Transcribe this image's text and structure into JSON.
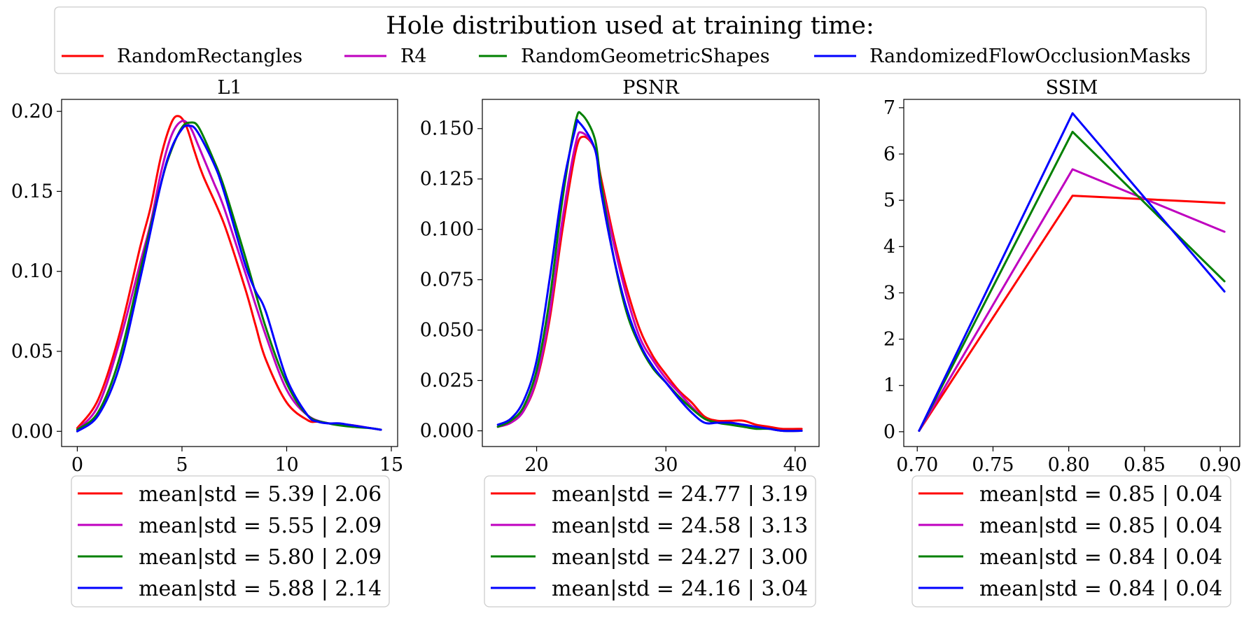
{
  "figure": {
    "title": "Hole distribution used at training time:",
    "series_names": [
      "RandomRectangles",
      "R4",
      "RandomGeometricShapes",
      "RandomizedFlowOcclusionMasks"
    ],
    "colors": [
      "#ff0000",
      "#bf00bf",
      "#008000",
      "#0000ff"
    ]
  },
  "chart_data": [
    {
      "type": "line",
      "title": "L1",
      "xlabel": "",
      "ylabel": "",
      "xlim": [
        -0.75,
        15.3
      ],
      "ylim": [
        -0.0095,
        0.2075
      ],
      "xticks": [
        0,
        5,
        10,
        15
      ],
      "xtick_labels": [
        "0",
        "5",
        "10",
        "15"
      ],
      "yticks": [
        0.0,
        0.05,
        0.1,
        0.15,
        0.2
      ],
      "ytick_labels": [
        "0.00",
        "0.05",
        "0.10",
        "0.15",
        "0.20"
      ],
      "grid": false,
      "series": [
        {
          "name": "RandomRectangles",
          "x": [
            0,
            1,
            2,
            3,
            3.5,
            4,
            4.5,
            4.85,
            5.2,
            5.6,
            6,
            7,
            8,
            8.5,
            9,
            10,
            11,
            11.5,
            12,
            13,
            14,
            14.5
          ],
          "y": [
            0.002,
            0.02,
            0.06,
            0.115,
            0.14,
            0.172,
            0.193,
            0.197,
            0.191,
            0.175,
            0.16,
            0.13,
            0.09,
            0.067,
            0.045,
            0.018,
            0.007,
            0.006,
            0.005,
            0.004,
            0.002,
            0.001
          ]
        },
        {
          "name": "R4",
          "x": [
            0,
            1,
            2,
            3,
            3.5,
            4,
            4.5,
            5,
            5.4,
            5.8,
            6.5,
            7,
            8,
            9,
            10,
            11,
            12,
            13,
            14,
            14.5
          ],
          "y": [
            0.001,
            0.016,
            0.055,
            0.105,
            0.13,
            0.162,
            0.185,
            0.194,
            0.19,
            0.178,
            0.156,
            0.14,
            0.1,
            0.06,
            0.026,
            0.01,
            0.005,
            0.004,
            0.002,
            0.001
          ]
        },
        {
          "name": "RandomGeometricShapes",
          "x": [
            0,
            1,
            2,
            3,
            4,
            4.5,
            5,
            5.4,
            5.8,
            6.5,
            7,
            8,
            9,
            10,
            11,
            12,
            13,
            14,
            14.5
          ],
          "y": [
            0.001,
            0.012,
            0.045,
            0.1,
            0.155,
            0.176,
            0.19,
            0.193,
            0.19,
            0.17,
            0.153,
            0.11,
            0.065,
            0.03,
            0.01,
            0.005,
            0.003,
            0.002,
            0.001
          ]
        },
        {
          "name": "RandomizedFlowOcclusionMasks",
          "x": [
            0,
            1,
            2,
            3,
            4,
            4.5,
            5,
            5.3,
            5.7,
            6.5,
            7,
            8,
            8.5,
            9,
            10,
            11,
            11.5,
            12,
            12.5,
            13,
            14,
            14.5
          ],
          "y": [
            0.0,
            0.01,
            0.04,
            0.095,
            0.155,
            0.177,
            0.189,
            0.191,
            0.188,
            0.168,
            0.15,
            0.105,
            0.088,
            0.075,
            0.033,
            0.01,
            0.006,
            0.005,
            0.005,
            0.004,
            0.002,
            0.001
          ]
        }
      ],
      "legend_entries": [
        "mean|std = 5.39 | 2.06",
        "mean|std = 5.55 | 2.09",
        "mean|std = 5.80 | 2.09",
        "mean|std = 5.88 | 2.14"
      ],
      "legend_position": "below"
    },
    {
      "type": "line",
      "title": "PSNR",
      "xlabel": "",
      "ylabel": "",
      "xlim": [
        15.8,
        41.85
      ],
      "ylim": [
        -0.0078,
        0.1645
      ],
      "xticks": [
        20,
        30,
        40
      ],
      "xtick_labels": [
        "20",
        "30",
        "40"
      ],
      "yticks": [
        0.0,
        0.025,
        0.05,
        0.075,
        0.1,
        0.125,
        0.15
      ],
      "ytick_labels": [
        "0.000",
        "0.025",
        "0.050",
        "0.075",
        "0.100",
        "0.125",
        "0.150"
      ],
      "grid": false,
      "series": [
        {
          "name": "RandomRectangles",
          "x": [
            17,
            18,
            19,
            20,
            21,
            22,
            23,
            23.6,
            24.5,
            25,
            26,
            27,
            28,
            29,
            30,
            31,
            32,
            33,
            34,
            35,
            36,
            37,
            38,
            39,
            40.5
          ],
          "y": [
            0.002,
            0.004,
            0.01,
            0.025,
            0.055,
            0.1,
            0.138,
            0.146,
            0.14,
            0.125,
            0.095,
            0.07,
            0.05,
            0.037,
            0.028,
            0.02,
            0.014,
            0.007,
            0.005,
            0.005,
            0.005,
            0.003,
            0.002,
            0.001,
            0.001
          ]
        },
        {
          "name": "R4",
          "x": [
            17,
            18,
            19,
            20,
            21,
            22,
            23,
            23.5,
            24.5,
            25,
            26,
            27,
            28,
            29,
            30,
            31,
            32,
            33,
            34,
            35,
            36,
            37,
            38,
            39,
            40.5
          ],
          "y": [
            0.002,
            0.004,
            0.01,
            0.026,
            0.058,
            0.105,
            0.142,
            0.148,
            0.14,
            0.122,
            0.092,
            0.066,
            0.046,
            0.035,
            0.026,
            0.019,
            0.012,
            0.006,
            0.004,
            0.004,
            0.003,
            0.002,
            0.001,
            0.0,
            0.0
          ]
        },
        {
          "name": "RandomGeometricShapes",
          "x": [
            17,
            18,
            19,
            20,
            21,
            22,
            23,
            23.5,
            24.5,
            25,
            26,
            27,
            28,
            29,
            30,
            31,
            32,
            33,
            34,
            35,
            36,
            37,
            38,
            39,
            40.5
          ],
          "y": [
            0.002,
            0.005,
            0.012,
            0.03,
            0.065,
            0.115,
            0.153,
            0.157,
            0.145,
            0.122,
            0.085,
            0.058,
            0.042,
            0.031,
            0.024,
            0.017,
            0.011,
            0.006,
            0.004,
            0.003,
            0.002,
            0.001,
            0.001,
            0.0,
            0.0
          ]
        },
        {
          "name": "RandomizedFlowOcclusionMasks",
          "x": [
            17,
            18,
            19,
            20,
            21,
            22,
            23,
            23.3,
            24.5,
            25,
            26,
            27,
            28,
            29,
            30,
            31,
            32,
            33,
            34,
            35,
            36,
            37,
            38,
            39,
            40.5
          ],
          "y": [
            0.003,
            0.006,
            0.015,
            0.035,
            0.075,
            0.12,
            0.15,
            0.153,
            0.14,
            0.118,
            0.085,
            0.06,
            0.043,
            0.032,
            0.024,
            0.016,
            0.009,
            0.004,
            0.004,
            0.004,
            0.003,
            0.002,
            0.001,
            0.0,
            0.0
          ]
        }
      ],
      "legend_entries": [
        "mean|std = 24.77 | 3.19",
        "mean|std = 24.58 | 3.13",
        "mean|std = 24.27 | 3.00",
        "mean|std = 24.16 | 3.04"
      ],
      "legend_position": "below"
    },
    {
      "type": "line",
      "title": "SSIM",
      "xlabel": "",
      "ylabel": "",
      "xlim": [
        0.6911,
        0.9129
      ],
      "ylim": [
        -0.32,
        7.18
      ],
      "xticks": [
        0.7,
        0.75,
        0.8,
        0.85,
        0.9
      ],
      "xtick_labels": [
        "0.70",
        "0.75",
        "0.80",
        "0.85",
        "0.90"
      ],
      "yticks": [
        0,
        1,
        2,
        3,
        4,
        5,
        6,
        7
      ],
      "ytick_labels": [
        "0",
        "1",
        "2",
        "3",
        "4",
        "5",
        "6",
        "7"
      ],
      "grid": false,
      "series": [
        {
          "name": "RandomRectangles",
          "x": [
            0.7012,
            0.8025,
            0.9028
          ],
          "y": [
            0.02,
            5.1,
            4.94
          ]
        },
        {
          "name": "R4",
          "x": [
            0.7012,
            0.8025,
            0.9028
          ],
          "y": [
            0.02,
            5.67,
            4.32
          ]
        },
        {
          "name": "RandomGeometricShapes",
          "x": [
            0.7012,
            0.8025,
            0.9028
          ],
          "y": [
            0.02,
            6.48,
            3.25
          ]
        },
        {
          "name": "RandomizedFlowOcclusionMasks",
          "x": [
            0.7012,
            0.8025,
            0.9028
          ],
          "y": [
            0.02,
            6.88,
            3.03
          ]
        }
      ],
      "legend_entries": [
        "mean|std = 0.85 | 0.04",
        "mean|std = 0.85 | 0.04",
        "mean|std = 0.84 | 0.04",
        "mean|std = 0.84 | 0.04"
      ],
      "legend_position": "below"
    }
  ]
}
